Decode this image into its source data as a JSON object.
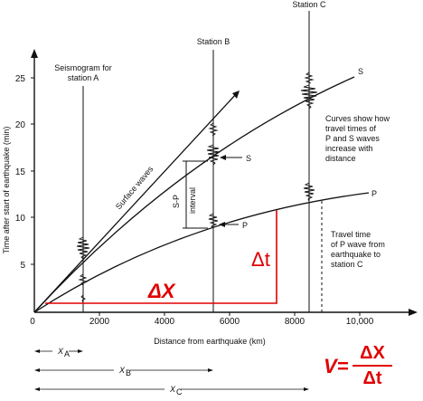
{
  "stations": [
    {
      "id": "A",
      "label": "Seismogram for",
      "label2": "station A"
    },
    {
      "id": "B",
      "label": "Station B"
    },
    {
      "id": "C",
      "label": "Station C"
    }
  ],
  "axes": {
    "ylabel": "Time after start of earthquake (min)",
    "xlabel": "Distance from earthquake (km)",
    "y_ticks": [
      "5",
      "10",
      "15",
      "20",
      "25"
    ],
    "x_ticks": [
      "2000",
      "4000",
      "6000",
      "8000",
      "10,000"
    ],
    "origin": "0"
  },
  "curves": {
    "surface": "Surface waves",
    "s": "S",
    "p": "P"
  },
  "annotations": {
    "s_marker": "S",
    "p_marker": "P",
    "sp_interval_1": "S-P",
    "sp_interval_2": "interval",
    "curves_note": [
      "Curves show how",
      "travel times of",
      "P and S waves",
      "increase with",
      "distance"
    ],
    "travel_note": [
      "Travel time",
      "of P wave from",
      "earthquake to",
      "station C"
    ]
  },
  "distances": {
    "xa_label": "X",
    "xa_sub": "A",
    "xb_label": "X",
    "xb_sub": "B",
    "xc_label": "X",
    "xc_sub": "C"
  },
  "red_labels": {
    "delta_t": "Δt",
    "delta_x": "ΔX",
    "formula_v": "V=",
    "formula_num": "ΔX",
    "formula_den": "Δt"
  },
  "colors": {
    "accent": "#e00000",
    "ink": "#111111"
  }
}
